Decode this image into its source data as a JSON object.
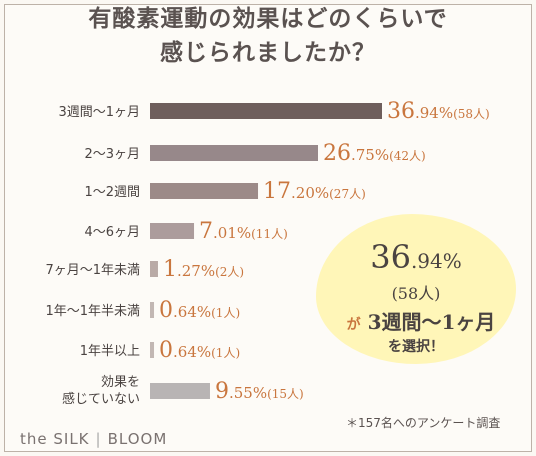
{
  "title_line1": "有酸素運動の効果はどのくらいで",
  "title_line2": "感じられましたか？",
  "chart_data": {
    "type": "bar",
    "orientation": "horizontal",
    "categories": [
      "3週間〜1ヶ月",
      "2〜3ヶ月",
      "1〜2週間",
      "4〜6ヶ月",
      "7ヶ月〜1年未満",
      "1年〜1年半未満",
      "1年半以上",
      "効果を|感じていない"
    ],
    "values": [
      36.94,
      26.75,
      17.2,
      7.01,
      1.27,
      0.64,
      0.64,
      9.55
    ],
    "counts": [
      "(58人)",
      "(42人)",
      "(27人)",
      "(11人)",
      "(2人)",
      "(1人)",
      "(1人)",
      "(15人)"
    ],
    "unit": "%",
    "colors": [
      "#6e5e5c",
      "#97888a",
      "#9c8a88",
      "#ac9c9c",
      "#b9aaa6",
      "#c2b7b3",
      "#c2b7b3",
      "#b8b4b4"
    ],
    "value_color": "#c9763e",
    "grid": false,
    "legend": "none"
  },
  "callout": {
    "pct_big": "36",
    "pct_small": ".94%",
    "count": "(58人)",
    "ga": "が",
    "label": "3週間〜1ヶ月",
    "sub": "を選択！",
    "color": "#fff6b8"
  },
  "footnote": "＊157名へのアンケート調査",
  "brand": {
    "left": "the SILK",
    "separator": "|",
    "right": "BLOOM"
  }
}
